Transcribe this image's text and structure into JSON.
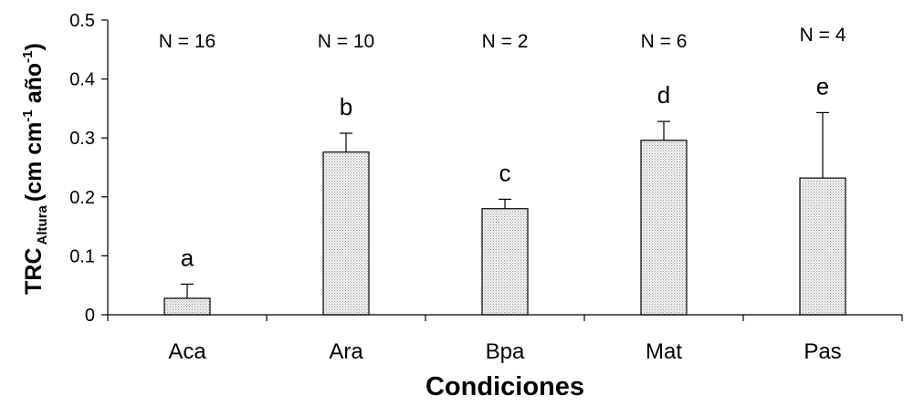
{
  "chart_data": {
    "type": "bar",
    "categories": [
      "Aca",
      "Ara",
      "Bpa",
      "Mat",
      "Pas"
    ],
    "values": [
      0.028,
      0.276,
      0.18,
      0.296,
      0.232
    ],
    "errors": [
      0.024,
      0.032,
      0.016,
      0.032,
      0.111
    ],
    "n_labels": [
      "N = 16",
      "N = 10",
      "N = 2",
      "N = 6",
      "N = 4"
    ],
    "letters": [
      "a",
      "b",
      "c",
      "d",
      "e"
    ],
    "xlabel": "Condiciones",
    "ylabel": {
      "main": "TRC",
      "subscript": "Altura",
      "units_open": "(cm cm",
      "exp1": "-1",
      "mid": " año",
      "exp2": "-1",
      "units_close": ")"
    },
    "ylim": [
      0,
      0.5
    ],
    "yticks": [
      "0",
      "0.1",
      "0.2",
      "0.3",
      "0.4",
      "0.5"
    ],
    "grid": false,
    "legend": "none",
    "bar_fill_pattern": "stipple",
    "colors": {
      "bar_fill": "#f2f2f2",
      "bar_dots": "#9a9a9a",
      "stroke": "#000000"
    }
  }
}
